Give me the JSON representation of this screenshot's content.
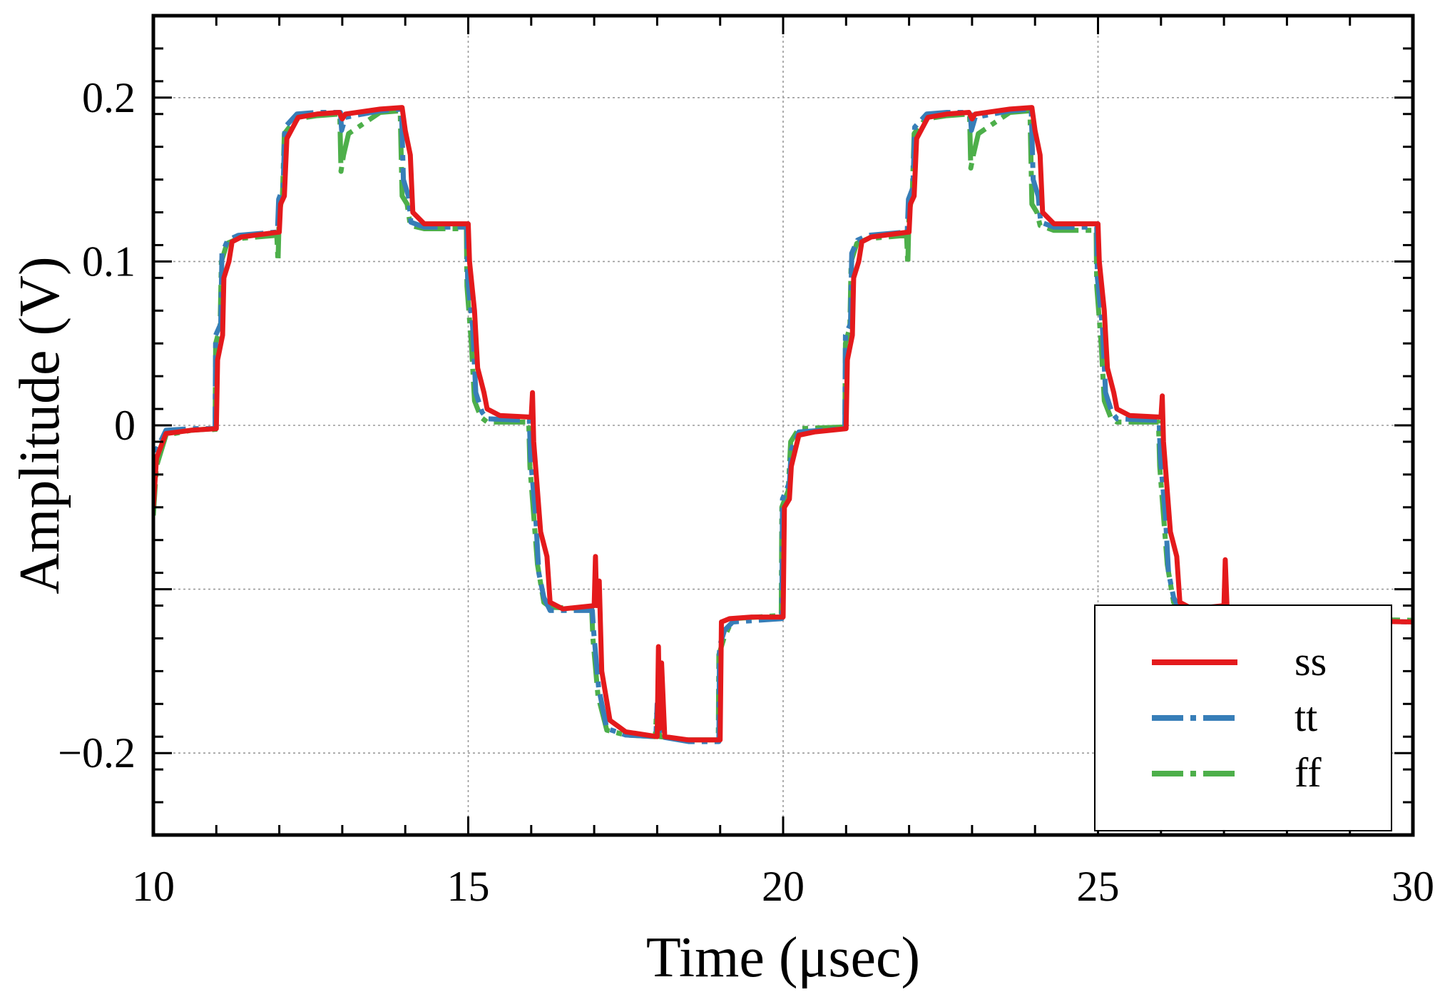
{
  "chart_data": {
    "type": "line",
    "title": "",
    "xlabel": "Time (μsec)",
    "ylabel": "Amplitude (V)",
    "xlim": [
      10,
      30
    ],
    "ylim": [
      -0.25,
      0.25
    ],
    "x_ticks": [
      {
        "value": 10,
        "label": "10"
      },
      {
        "value": 15,
        "label": "15"
      },
      {
        "value": 20,
        "label": "20"
      },
      {
        "value": 25,
        "label": "25"
      },
      {
        "value": 30,
        "label": "30"
      }
    ],
    "y_ticks": [
      {
        "value": 0.2,
        "label": "0.2"
      },
      {
        "value": 0.1,
        "label": "0.1"
      },
      {
        "value": 0,
        "label": "0"
      },
      {
        "value": -0.1,
        "label": ""
      },
      {
        "value": -0.2,
        "label": "−0.2"
      }
    ],
    "grid": true,
    "legend": {
      "position": "bottom-right"
    },
    "series": [
      {
        "name": "ss",
        "color": "#e41a1c",
        "dash": "solid",
        "points": [
          [
            10.0,
            -0.05
          ],
          [
            10.05,
            -0.02
          ],
          [
            10.2,
            -0.005
          ],
          [
            10.6,
            -0.003
          ],
          [
            11.0,
            -0.002
          ],
          [
            11.02,
            0.04
          ],
          [
            11.1,
            0.055
          ],
          [
            11.12,
            0.09
          ],
          [
            11.2,
            0.1
          ],
          [
            11.25,
            0.112
          ],
          [
            11.4,
            0.115
          ],
          [
            12.0,
            0.118
          ],
          [
            12.02,
            0.135
          ],
          [
            12.08,
            0.14
          ],
          [
            12.12,
            0.175
          ],
          [
            12.3,
            0.188
          ],
          [
            12.6,
            0.19
          ],
          [
            12.95,
            0.191
          ],
          [
            13.0,
            0.187
          ],
          [
            13.05,
            0.19
          ],
          [
            13.6,
            0.193
          ],
          [
            13.95,
            0.194
          ],
          [
            14.0,
            0.18
          ],
          [
            14.08,
            0.165
          ],
          [
            14.12,
            0.13
          ],
          [
            14.3,
            0.123
          ],
          [
            15.0,
            0.123
          ],
          [
            15.02,
            0.1
          ],
          [
            15.1,
            0.07
          ],
          [
            15.15,
            0.035
          ],
          [
            15.25,
            0.02
          ],
          [
            15.3,
            0.01
          ],
          [
            15.5,
            0.006
          ],
          [
            16.0,
            0.005
          ],
          [
            16.02,
            0.02
          ],
          [
            16.04,
            -0.01
          ],
          [
            16.1,
            -0.04
          ],
          [
            16.15,
            -0.065
          ],
          [
            16.25,
            -0.08
          ],
          [
            16.3,
            -0.108
          ],
          [
            16.5,
            -0.112
          ],
          [
            17.0,
            -0.11
          ],
          [
            17.02,
            -0.08
          ],
          [
            17.04,
            -0.11
          ],
          [
            17.08,
            -0.095
          ],
          [
            17.12,
            -0.15
          ],
          [
            17.25,
            -0.18
          ],
          [
            17.5,
            -0.187
          ],
          [
            18.0,
            -0.19
          ],
          [
            18.02,
            -0.135
          ],
          [
            18.04,
            -0.185
          ],
          [
            18.07,
            -0.145
          ],
          [
            18.12,
            -0.19
          ],
          [
            18.5,
            -0.192
          ],
          [
            19.0,
            -0.192
          ],
          [
            19.02,
            -0.12
          ],
          [
            19.15,
            -0.118
          ],
          [
            19.5,
            -0.117
          ],
          [
            20.0,
            -0.117
          ],
          [
            20.02,
            -0.05
          ],
          [
            20.1,
            -0.045
          ],
          [
            20.13,
            -0.025
          ],
          [
            20.25,
            -0.006
          ],
          [
            20.5,
            -0.004
          ],
          [
            21.0,
            -0.002
          ],
          [
            21.02,
            0.04
          ],
          [
            21.1,
            0.055
          ],
          [
            21.12,
            0.09
          ],
          [
            21.2,
            0.1
          ],
          [
            21.25,
            0.112
          ],
          [
            21.4,
            0.115
          ],
          [
            22.0,
            0.118
          ],
          [
            22.02,
            0.135
          ],
          [
            22.08,
            0.14
          ],
          [
            22.12,
            0.175
          ],
          [
            22.3,
            0.188
          ],
          [
            22.6,
            0.19
          ],
          [
            22.95,
            0.191
          ],
          [
            23.0,
            0.187
          ],
          [
            23.05,
            0.19
          ],
          [
            23.6,
            0.193
          ],
          [
            23.95,
            0.194
          ],
          [
            24.0,
            0.18
          ],
          [
            24.08,
            0.165
          ],
          [
            24.12,
            0.13
          ],
          [
            24.3,
            0.123
          ],
          [
            25.0,
            0.123
          ],
          [
            25.02,
            0.1
          ],
          [
            25.1,
            0.07
          ],
          [
            25.15,
            0.035
          ],
          [
            25.25,
            0.02
          ],
          [
            25.3,
            0.01
          ],
          [
            25.5,
            0.006
          ],
          [
            26.0,
            0.005
          ],
          [
            26.02,
            0.018
          ],
          [
            26.04,
            -0.01
          ],
          [
            26.1,
            -0.04
          ],
          [
            26.15,
            -0.065
          ],
          [
            26.25,
            -0.08
          ],
          [
            26.3,
            -0.108
          ],
          [
            26.5,
            -0.112
          ],
          [
            27.0,
            -0.11
          ],
          [
            27.02,
            -0.082
          ],
          [
            27.05,
            -0.112
          ],
          [
            27.3,
            -0.115
          ],
          [
            27.7,
            -0.118
          ],
          [
            28.5,
            -0.119
          ],
          [
            30.0,
            -0.12
          ]
        ]
      },
      {
        "name": "tt",
        "color": "#377eb8",
        "dash": "dashdot",
        "points": [
          [
            10.0,
            -0.04
          ],
          [
            10.05,
            -0.015
          ],
          [
            10.2,
            -0.003
          ],
          [
            10.6,
            -0.002
          ],
          [
            10.98,
            -0.002
          ],
          [
            10.99,
            0.055
          ],
          [
            11.07,
            0.062
          ],
          [
            11.09,
            0.105
          ],
          [
            11.18,
            0.113
          ],
          [
            11.35,
            0.116
          ],
          [
            11.97,
            0.118
          ],
          [
            11.99,
            0.138
          ],
          [
            12.06,
            0.145
          ],
          [
            12.09,
            0.182
          ],
          [
            12.28,
            0.19
          ],
          [
            12.6,
            0.191
          ],
          [
            12.97,
            0.191
          ],
          [
            12.99,
            0.18
          ],
          [
            13.05,
            0.188
          ],
          [
            13.6,
            0.192
          ],
          [
            13.94,
            0.193
          ],
          [
            13.97,
            0.15
          ],
          [
            14.05,
            0.14
          ],
          [
            14.09,
            0.124
          ],
          [
            14.3,
            0.121
          ],
          [
            14.98,
            0.121
          ],
          [
            14.99,
            0.09
          ],
          [
            15.07,
            0.06
          ],
          [
            15.12,
            0.02
          ],
          [
            15.22,
            0.008
          ],
          [
            15.3,
            0.004
          ],
          [
            15.97,
            0.003
          ],
          [
            15.99,
            -0.02
          ],
          [
            16.07,
            -0.055
          ],
          [
            16.12,
            -0.09
          ],
          [
            16.2,
            -0.105
          ],
          [
            16.3,
            -0.113
          ],
          [
            16.97,
            -0.113
          ],
          [
            16.99,
            -0.125
          ],
          [
            17.07,
            -0.16
          ],
          [
            17.2,
            -0.185
          ],
          [
            17.5,
            -0.189
          ],
          [
            17.98,
            -0.19
          ],
          [
            18.0,
            -0.17
          ],
          [
            18.05,
            -0.19
          ],
          [
            18.5,
            -0.193
          ],
          [
            18.98,
            -0.193
          ],
          [
            18.99,
            -0.135
          ],
          [
            19.07,
            -0.125
          ],
          [
            19.2,
            -0.12
          ],
          [
            19.98,
            -0.118
          ],
          [
            19.99,
            -0.045
          ],
          [
            20.1,
            -0.035
          ],
          [
            20.13,
            -0.015
          ],
          [
            20.25,
            -0.004
          ],
          [
            20.98,
            -0.002
          ],
          [
            20.99,
            0.055
          ],
          [
            21.07,
            0.062
          ],
          [
            21.09,
            0.105
          ],
          [
            21.18,
            0.113
          ],
          [
            21.35,
            0.116
          ],
          [
            21.97,
            0.118
          ],
          [
            21.99,
            0.138
          ],
          [
            22.06,
            0.145
          ],
          [
            22.09,
            0.182
          ],
          [
            22.28,
            0.19
          ],
          [
            22.6,
            0.191
          ],
          [
            22.97,
            0.191
          ],
          [
            22.99,
            0.18
          ],
          [
            23.05,
            0.188
          ],
          [
            23.6,
            0.192
          ],
          [
            23.94,
            0.193
          ],
          [
            23.97,
            0.15
          ],
          [
            24.05,
            0.14
          ],
          [
            24.09,
            0.124
          ],
          [
            24.3,
            0.121
          ],
          [
            24.98,
            0.121
          ],
          [
            24.99,
            0.09
          ],
          [
            25.07,
            0.06
          ],
          [
            25.12,
            0.02
          ],
          [
            25.22,
            0.008
          ],
          [
            25.3,
            0.004
          ],
          [
            25.97,
            0.003
          ],
          [
            25.99,
            -0.02
          ],
          [
            26.07,
            -0.055
          ],
          [
            26.12,
            -0.09
          ],
          [
            26.2,
            -0.105
          ],
          [
            26.3,
            -0.113
          ],
          [
            26.97,
            -0.113
          ],
          [
            27.0,
            -0.115
          ],
          [
            27.5,
            -0.118
          ],
          [
            28.5,
            -0.119
          ],
          [
            30.0,
            -0.12
          ]
        ]
      },
      {
        "name": "ff",
        "color": "#4daf4a",
        "dash": "dashdot",
        "points": [
          [
            10.0,
            -0.055
          ],
          [
            10.05,
            -0.025
          ],
          [
            10.2,
            -0.006
          ],
          [
            10.6,
            -0.003
          ],
          [
            10.97,
            -0.002
          ],
          [
            10.98,
            -0.006
          ],
          [
            10.99,
            0.05
          ],
          [
            11.06,
            0.06
          ],
          [
            11.08,
            0.1
          ],
          [
            11.17,
            0.111
          ],
          [
            11.35,
            0.114
          ],
          [
            11.96,
            0.116
          ],
          [
            11.98,
            0.1
          ],
          [
            12.0,
            0.13
          ],
          [
            12.05,
            0.14
          ],
          [
            12.08,
            0.178
          ],
          [
            12.26,
            0.187
          ],
          [
            12.6,
            0.189
          ],
          [
            12.96,
            0.19
          ],
          [
            12.98,
            0.155
          ],
          [
            13.02,
            0.165
          ],
          [
            13.1,
            0.178
          ],
          [
            13.6,
            0.191
          ],
          [
            13.92,
            0.192
          ],
          [
            13.95,
            0.14
          ],
          [
            14.03,
            0.135
          ],
          [
            14.08,
            0.122
          ],
          [
            14.3,
            0.12
          ],
          [
            14.97,
            0.12
          ],
          [
            14.98,
            0.085
          ],
          [
            15.05,
            0.05
          ],
          [
            15.1,
            0.015
          ],
          [
            15.2,
            0.005
          ],
          [
            15.3,
            0.002
          ],
          [
            15.96,
            0.002
          ],
          [
            15.98,
            -0.025
          ],
          [
            16.05,
            -0.06
          ],
          [
            16.1,
            -0.085
          ],
          [
            16.2,
            -0.108
          ],
          [
            16.3,
            -0.111
          ],
          [
            16.96,
            -0.112
          ],
          [
            16.98,
            -0.13
          ],
          [
            17.06,
            -0.165
          ],
          [
            17.2,
            -0.186
          ],
          [
            17.5,
            -0.189
          ],
          [
            17.97,
            -0.19
          ],
          [
            17.99,
            -0.175
          ],
          [
            18.04,
            -0.19
          ],
          [
            18.5,
            -0.192
          ],
          [
            18.97,
            -0.192
          ],
          [
            18.98,
            -0.14
          ],
          [
            19.06,
            -0.13
          ],
          [
            19.2,
            -0.118
          ],
          [
            19.97,
            -0.116
          ],
          [
            19.98,
            -0.05
          ],
          [
            20.08,
            -0.04
          ],
          [
            20.12,
            -0.01
          ],
          [
            20.25,
            -0.002
          ],
          [
            20.97,
            -0.001
          ],
          [
            20.98,
            -0.004
          ],
          [
            20.99,
            0.05
          ],
          [
            21.06,
            0.06
          ],
          [
            21.08,
            0.1
          ],
          [
            21.17,
            0.111
          ],
          [
            21.35,
            0.114
          ],
          [
            21.96,
            0.116
          ],
          [
            21.98,
            0.098
          ],
          [
            22.0,
            0.13
          ],
          [
            22.05,
            0.14
          ],
          [
            22.08,
            0.178
          ],
          [
            22.26,
            0.187
          ],
          [
            22.6,
            0.189
          ],
          [
            22.96,
            0.19
          ],
          [
            22.98,
            0.157
          ],
          [
            23.02,
            0.165
          ],
          [
            23.1,
            0.178
          ],
          [
            23.6,
            0.191
          ],
          [
            23.92,
            0.192
          ],
          [
            23.95,
            0.135
          ],
          [
            24.03,
            0.13
          ],
          [
            24.08,
            0.122
          ],
          [
            24.3,
            0.119
          ],
          [
            24.97,
            0.119
          ],
          [
            24.98,
            0.085
          ],
          [
            25.05,
            0.05
          ],
          [
            25.1,
            0.015
          ],
          [
            25.2,
            0.005
          ],
          [
            25.3,
            0.002
          ],
          [
            25.96,
            0.002
          ],
          [
            25.98,
            -0.025
          ],
          [
            26.05,
            -0.06
          ],
          [
            26.1,
            -0.085
          ],
          [
            26.2,
            -0.108
          ],
          [
            26.3,
            -0.111
          ],
          [
            26.96,
            -0.112
          ],
          [
            27.0,
            -0.115
          ],
          [
            27.5,
            -0.117
          ],
          [
            28.5,
            -0.118
          ],
          [
            30.0,
            -0.119
          ]
        ]
      }
    ]
  }
}
